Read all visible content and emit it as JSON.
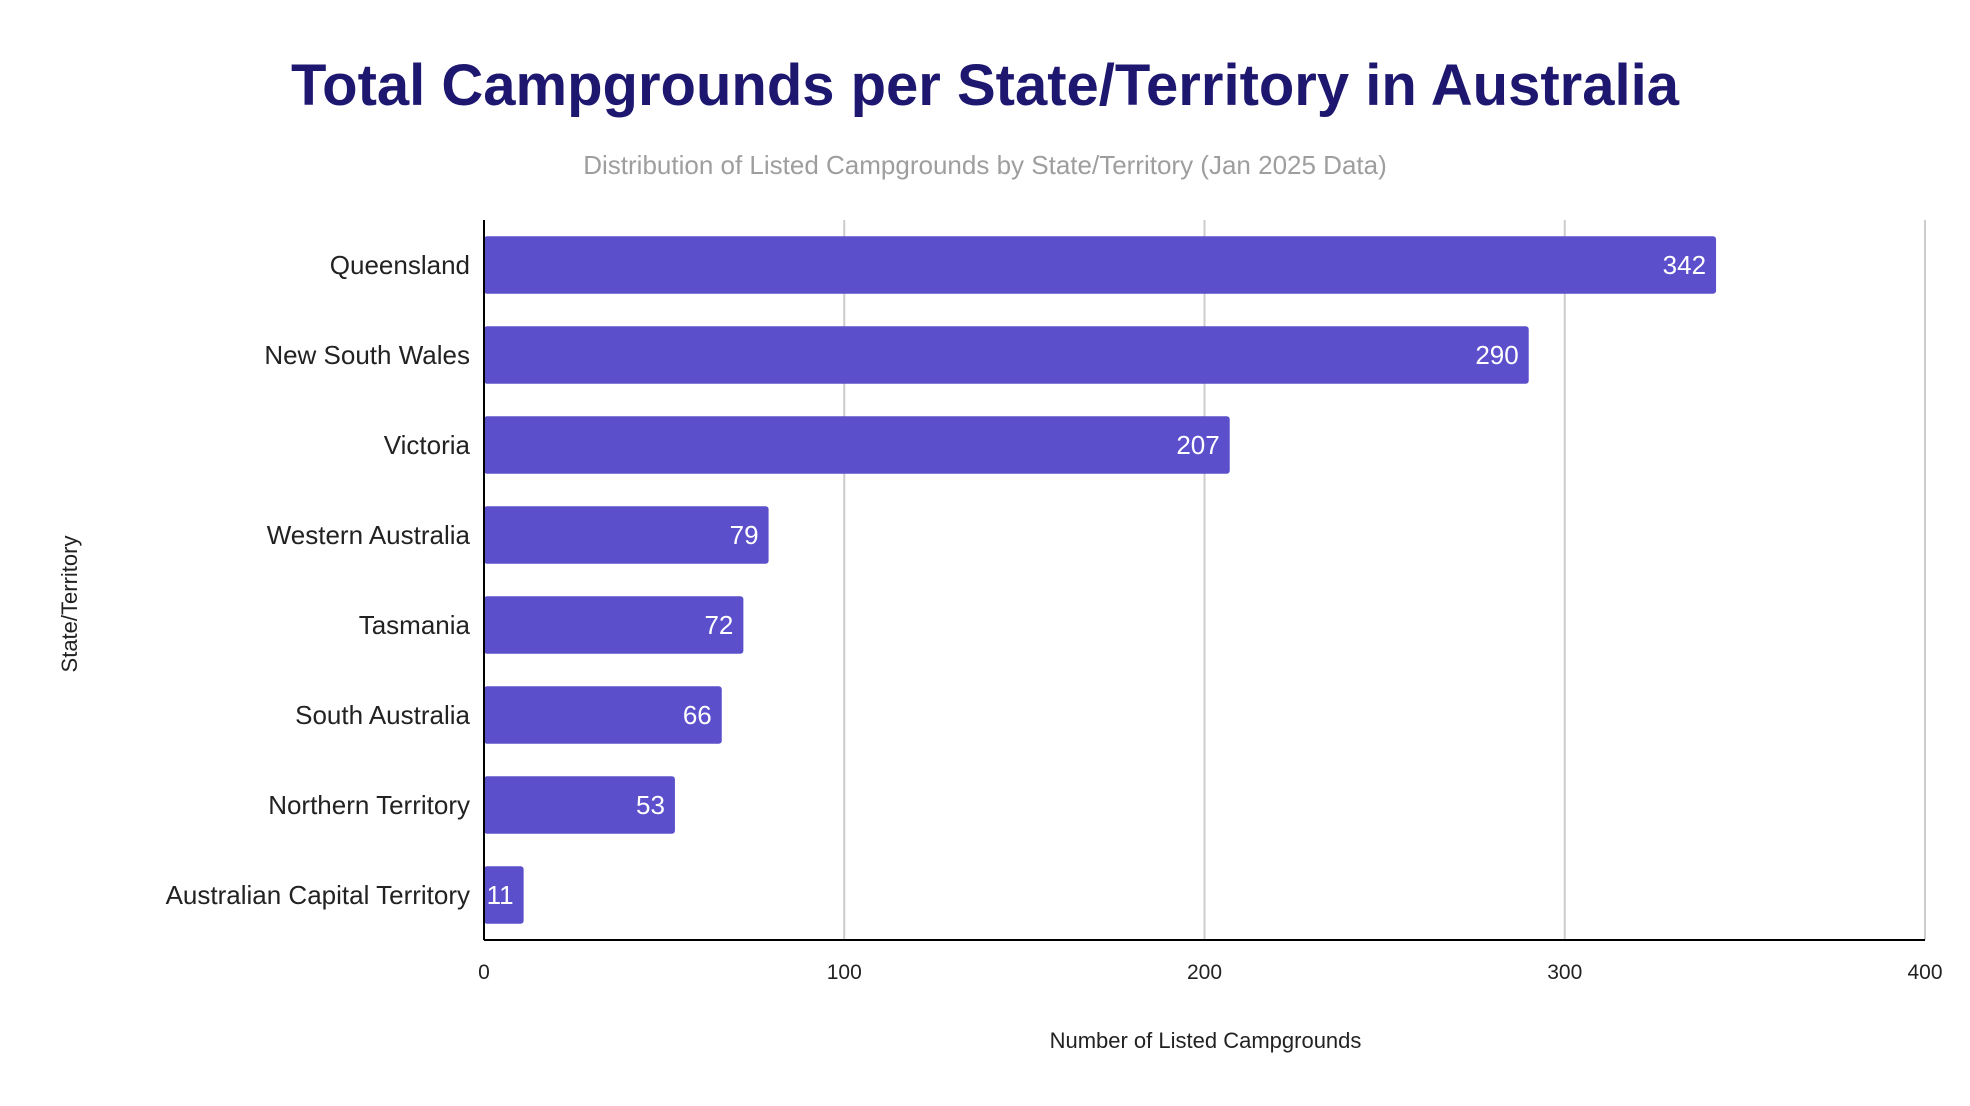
{
  "chart_data": {
    "type": "bar",
    "orientation": "horizontal",
    "title": "Total Campgrounds per State/Territory in Australia",
    "subtitle": "Distribution of Listed Campgrounds by State/Territory (Jan 2025 Data)",
    "xlabel": "Number of Listed Campgrounds",
    "ylabel": "State/Territory",
    "categories": [
      "Queensland",
      "New South Wales",
      "Victoria",
      "Western Australia",
      "Tasmania",
      "South Australia",
      "Northern Territory",
      "Australian Capital Territory"
    ],
    "values": [
      342,
      290,
      207,
      79,
      72,
      66,
      53,
      11
    ],
    "xlim": [
      0,
      400
    ],
    "xticks": [
      "0",
      "100",
      "200",
      "300",
      "400"
    ],
    "grid": "vertical",
    "legend": "none",
    "colors": {
      "bar": "#5b4fcb",
      "title": "#1e1770",
      "subtitle": "#9e9e9e",
      "grid": "#cccccc",
      "axis": "#000000"
    }
  }
}
